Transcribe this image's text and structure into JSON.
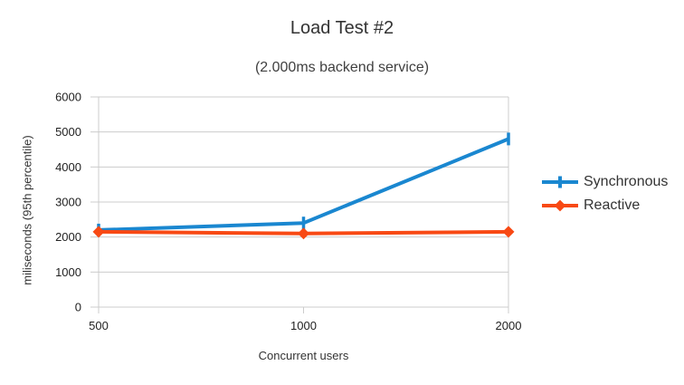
{
  "header": {
    "title": "Load Test #2",
    "subtitle": "(2.000ms backend service)"
  },
  "chart_data": {
    "type": "line",
    "title": "Load Test #2",
    "subtitle": "(2.000ms backend service)",
    "xlabel": "Concurrent users",
    "ylabel": "miliseconds (95th percentile)",
    "categories": [
      "500",
      "1000",
      "2000"
    ],
    "series": [
      {
        "name": "Synchronous",
        "values": [
          2200,
          2400,
          4800
        ],
        "color": "#1A87D0",
        "marker": "vtick"
      },
      {
        "name": "Reactive",
        "values": [
          2150,
          2100,
          2150
        ],
        "color": "#F84914",
        "marker": "diamond"
      }
    ],
    "ylim": [
      0,
      6000
    ],
    "ytick_step": 1000,
    "grid": true,
    "grid_color": "#cccccc",
    "legend_position": "right"
  }
}
